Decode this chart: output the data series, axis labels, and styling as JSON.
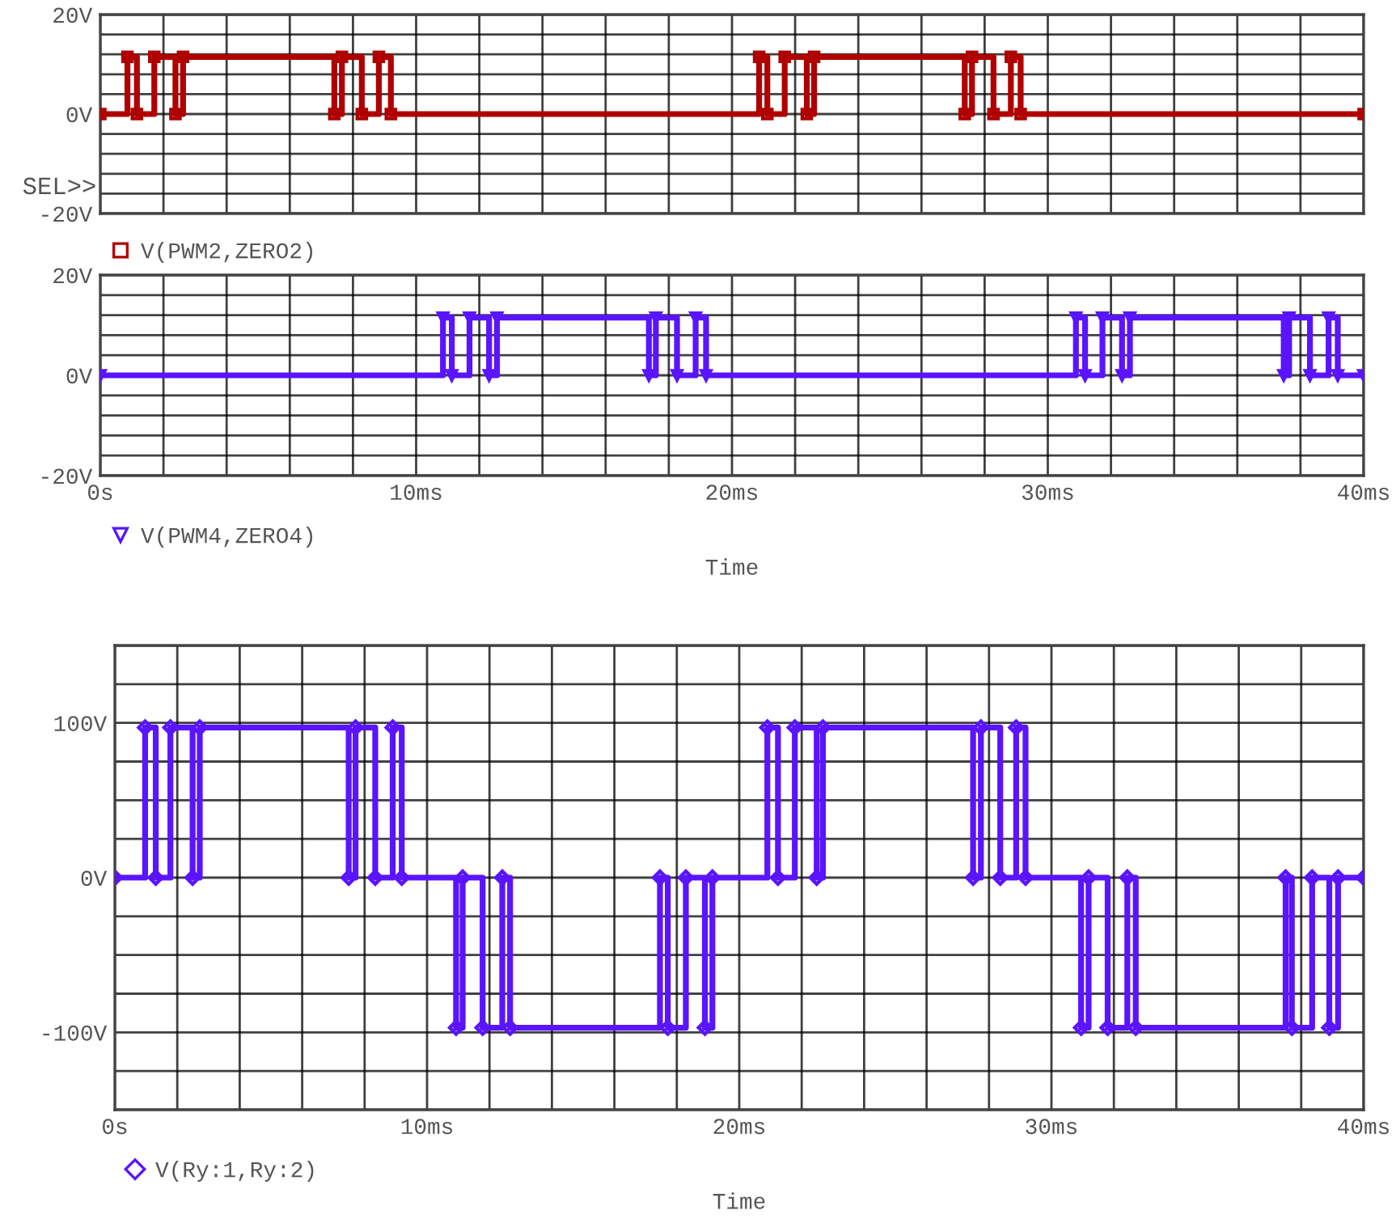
{
  "chart_data": [
    {
      "type": "step",
      "xlim": [
        0,
        40
      ],
      "ylim": [
        -20,
        20
      ],
      "xticks": [
        {
          "value": 0,
          "label": null
        },
        {
          "value": 2,
          "label": null
        },
        {
          "value": 4,
          "label": null
        },
        {
          "value": 6,
          "label": null
        },
        {
          "value": 8,
          "label": null
        },
        {
          "value": 10,
          "label": null
        },
        {
          "value": 12,
          "label": null
        },
        {
          "value": 14,
          "label": null
        },
        {
          "value": 16,
          "label": null
        },
        {
          "value": 18,
          "label": null
        },
        {
          "value": 20,
          "label": null
        },
        {
          "value": 22,
          "label": null
        },
        {
          "value": 24,
          "label": null
        },
        {
          "value": 26,
          "label": null
        },
        {
          "value": 28,
          "label": null
        },
        {
          "value": 30,
          "label": null
        },
        {
          "value": 32,
          "label": null
        },
        {
          "value": 34,
          "label": null
        },
        {
          "value": 36,
          "label": null
        },
        {
          "value": 38,
          "label": null
        },
        {
          "value": 40,
          "label": null
        }
      ],
      "yticks": [
        {
          "value": -20,
          "label": "-20V"
        },
        {
          "value": -16,
          "label": null
        },
        {
          "value": -12,
          "label": null
        },
        {
          "value": -8,
          "label": null
        },
        {
          "value": -4,
          "label": null
        },
        {
          "value": 0,
          "label": "0V"
        },
        {
          "value": 4,
          "label": null
        },
        {
          "value": 8,
          "label": null
        },
        {
          "value": 12,
          "label": null
        },
        {
          "value": 16,
          "label": null
        },
        {
          "value": 20,
          "label": "20V"
        }
      ],
      "tick_labels": "y",
      "grid": true,
      "legend": "bottom",
      "marker": "square",
      "line_style": "solid",
      "annotations": [
        "SEL>>"
      ],
      "series": [
        {
          "name": "V(PWM2,ZERO2)",
          "color": "#b00000",
          "x": [
            0,
            0.86,
            1.16,
            1.71,
            2.38,
            2.62,
            7.41,
            7.65,
            8.28,
            8.82,
            9.2,
            20.86,
            21.12,
            21.67,
            22.37,
            22.6,
            27.37,
            27.6,
            28.28,
            28.83,
            29.14,
            40
          ],
          "values": [
            0,
            11.5,
            0,
            11.5,
            0,
            11.5,
            0,
            11.5,
            0,
            11.5,
            0,
            11.5,
            0,
            11.5,
            0,
            11.5,
            0,
            11.5,
            0,
            11.5,
            0,
            0
          ]
        }
      ]
    },
    {
      "type": "step",
      "xlim": [
        0,
        40
      ],
      "ylim": [
        -20,
        20
      ],
      "xlabel": "Time",
      "xticks": [
        {
          "value": 0,
          "label": "0s"
        },
        {
          "value": 2,
          "label": null
        },
        {
          "value": 4,
          "label": null
        },
        {
          "value": 6,
          "label": null
        },
        {
          "value": 8,
          "label": null
        },
        {
          "value": 10,
          "label": "10ms"
        },
        {
          "value": 12,
          "label": null
        },
        {
          "value": 14,
          "label": null
        },
        {
          "value": 16,
          "label": null
        },
        {
          "value": 18,
          "label": null
        },
        {
          "value": 20,
          "label": "20ms"
        },
        {
          "value": 22,
          "label": null
        },
        {
          "value": 24,
          "label": null
        },
        {
          "value": 26,
          "label": null
        },
        {
          "value": 28,
          "label": null
        },
        {
          "value": 30,
          "label": "30ms"
        },
        {
          "value": 32,
          "label": null
        },
        {
          "value": 34,
          "label": null
        },
        {
          "value": 36,
          "label": null
        },
        {
          "value": 38,
          "label": null
        },
        {
          "value": 40,
          "label": "40ms"
        }
      ],
      "yticks": [
        {
          "value": -20,
          "label": "-20V"
        },
        {
          "value": -16,
          "label": null
        },
        {
          "value": -12,
          "label": null
        },
        {
          "value": -8,
          "label": null
        },
        {
          "value": -4,
          "label": null
        },
        {
          "value": 0,
          "label": "0V"
        },
        {
          "value": 4,
          "label": null
        },
        {
          "value": 8,
          "label": null
        },
        {
          "value": 12,
          "label": null
        },
        {
          "value": 16,
          "label": null
        },
        {
          "value": 20,
          "label": "20V"
        }
      ],
      "grid": true,
      "legend": "bottom",
      "marker": "triangle",
      "line_style": "solid",
      "series": [
        {
          "name": "V(PWM4,ZERO4)",
          "color": "#5a14ff",
          "x": [
            0,
            10.85,
            11.13,
            11.69,
            12.31,
            12.56,
            17.37,
            17.59,
            18.26,
            18.85,
            19.18,
            30.89,
            31.18,
            31.73,
            32.35,
            32.6,
            37.47,
            37.64,
            38.3,
            38.89,
            39.18,
            40
          ],
          "values": [
            0,
            11.5,
            0,
            11.5,
            0,
            11.5,
            0,
            11.5,
            0,
            11.5,
            0,
            11.5,
            0,
            11.5,
            0,
            11.5,
            0,
            11.5,
            0,
            11.5,
            0,
            0
          ]
        }
      ]
    },
    {
      "type": "step",
      "xlim": [
        0,
        40
      ],
      "ylim": [
        -150,
        150
      ],
      "xlabel": "Time",
      "xticks": [
        {
          "value": 0,
          "label": "0s"
        },
        {
          "value": 2,
          "label": null
        },
        {
          "value": 4,
          "label": null
        },
        {
          "value": 6,
          "label": null
        },
        {
          "value": 8,
          "label": null
        },
        {
          "value": 10,
          "label": "10ms"
        },
        {
          "value": 12,
          "label": null
        },
        {
          "value": 14,
          "label": null
        },
        {
          "value": 16,
          "label": null
        },
        {
          "value": 18,
          "label": null
        },
        {
          "value": 20,
          "label": "20ms"
        },
        {
          "value": 22,
          "label": null
        },
        {
          "value": 24,
          "label": null
        },
        {
          "value": 26,
          "label": null
        },
        {
          "value": 28,
          "label": null
        },
        {
          "value": 30,
          "label": "30ms"
        },
        {
          "value": 32,
          "label": null
        },
        {
          "value": 34,
          "label": null
        },
        {
          "value": 36,
          "label": null
        },
        {
          "value": 38,
          "label": null
        },
        {
          "value": 40,
          "label": "40ms"
        }
      ],
      "yticks": [
        {
          "value": -150,
          "label": null
        },
        {
          "value": -125,
          "label": null
        },
        {
          "value": -100,
          "label": "-100V"
        },
        {
          "value": -75,
          "label": null
        },
        {
          "value": -50,
          "label": null
        },
        {
          "value": -25,
          "label": null
        },
        {
          "value": 0,
          "label": "0V"
        },
        {
          "value": 25,
          "label": null
        },
        {
          "value": 50,
          "label": null
        },
        {
          "value": 75,
          "label": null
        },
        {
          "value": 100,
          "label": "100V"
        },
        {
          "value": 125,
          "label": null
        },
        {
          "value": 150,
          "label": null
        }
      ],
      "grid": true,
      "legend": "bottom",
      "marker": "diamond",
      "line_style": "solid",
      "series": [
        {
          "name": "V(Ry:1,Ry:2)",
          "color": "#5a14ff",
          "x": [
            0,
            0.97,
            1.31,
            1.78,
            2.49,
            2.72,
            7.49,
            7.71,
            8.34,
            8.9,
            9.19,
            10.93,
            11.14,
            11.78,
            12.41,
            12.66,
            17.46,
            17.71,
            18.29,
            18.9,
            19.14,
            20.9,
            21.24,
            21.78,
            22.48,
            22.68,
            27.49,
            27.74,
            28.36,
            28.87,
            29.17,
            30.95,
            31.19,
            31.8,
            32.43,
            32.7,
            37.5,
            37.7,
            38.35,
            38.9,
            39.18,
            40
          ],
          "values": [
            0,
            97,
            0,
            97,
            0,
            97,
            0,
            97,
            0,
            97,
            0,
            -97,
            0,
            -97,
            0,
            -97,
            0,
            -97,
            0,
            -97,
            0,
            97,
            0,
            97,
            0,
            97,
            0,
            97,
            0,
            97,
            0,
            -97,
            0,
            -97,
            0,
            -97,
            0,
            -97,
            0,
            -97,
            0,
            0
          ]
        }
      ]
    }
  ]
}
